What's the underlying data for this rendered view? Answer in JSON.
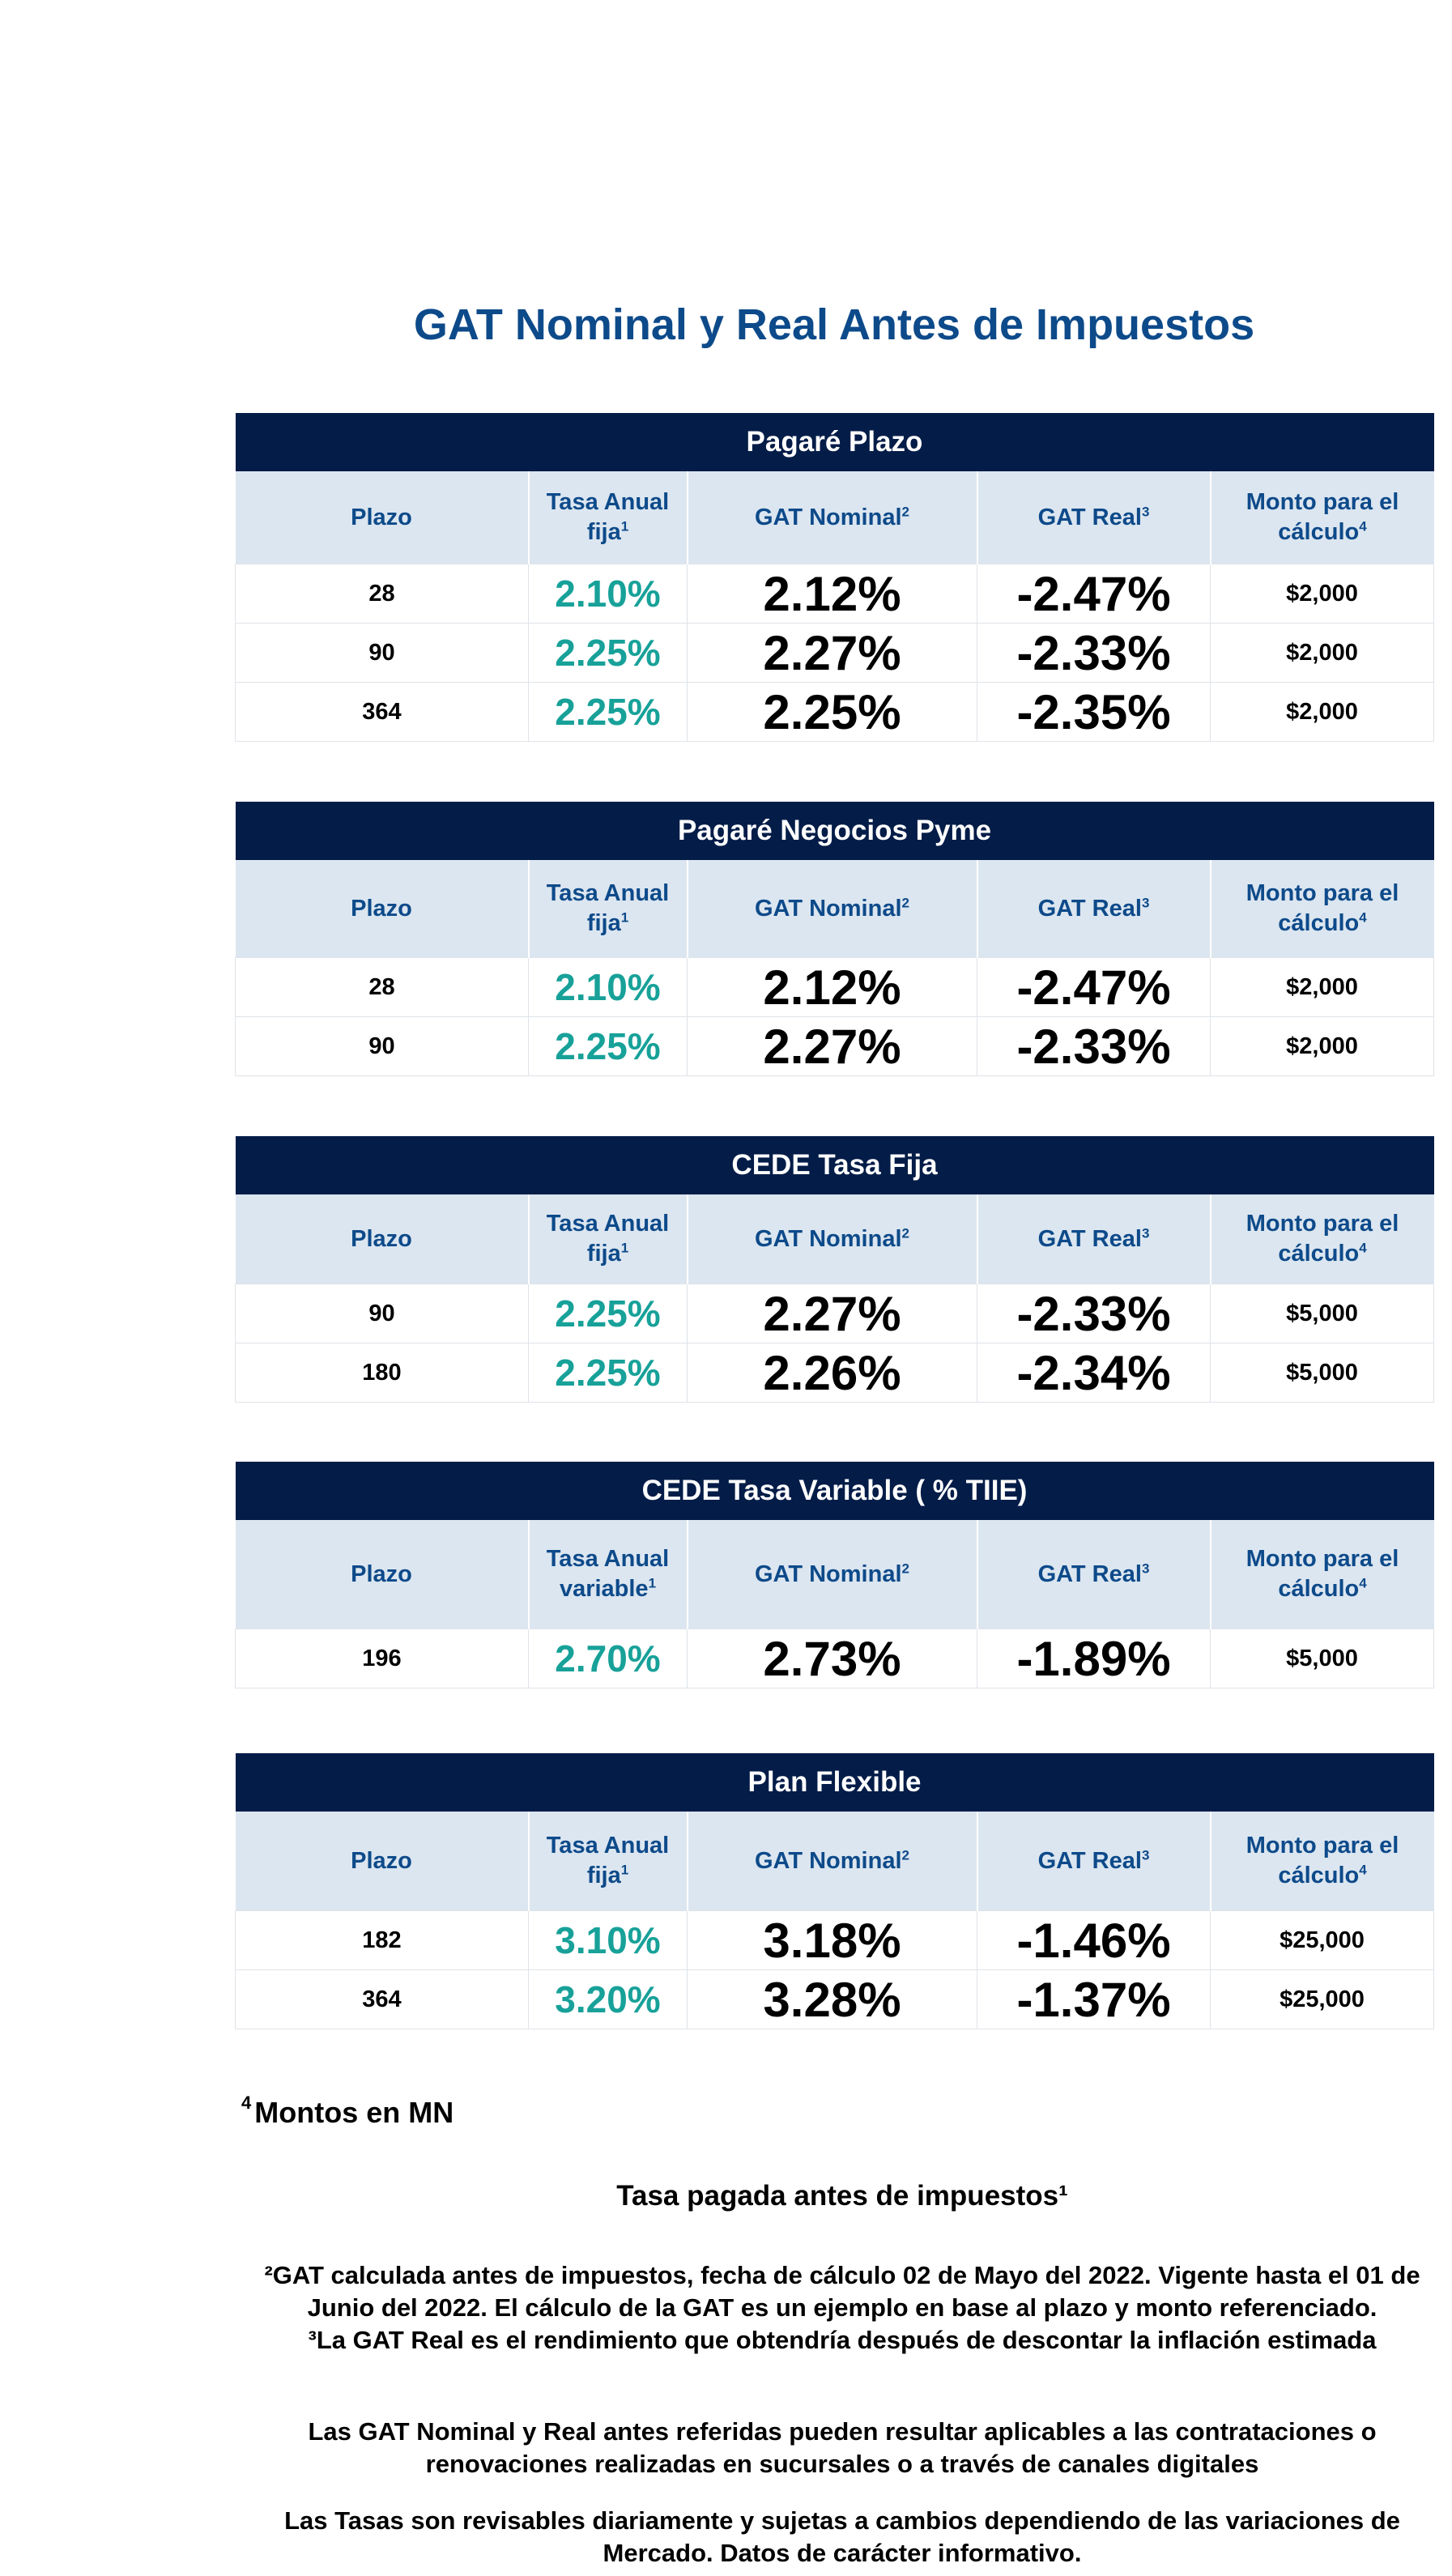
{
  "title": "GAT Nominal y Real Antes de Impuestos",
  "colors": {
    "title": "#0d4a8a",
    "table_header_bg": "#031c48",
    "column_header_bg": "#dce6f0",
    "rate_accent": "#17a199"
  },
  "tables": [
    {
      "title": "Pagaré Plazo",
      "headers": {
        "plazo": "Plazo",
        "tasa": "Tasa Anual fija",
        "tasa_sup": "1",
        "gat_nominal": "GAT Nominal",
        "gat_nominal_sup": "2",
        "gat_real": "GAT Real",
        "gat_real_sup": "3",
        "monto": "Monto para el cálculo",
        "monto_sup": "4"
      },
      "rows": [
        {
          "plazo": "28",
          "tasa": "2.10%",
          "gat_nominal": "2.12%",
          "gat_real": "-2.47%",
          "monto": "$2,000"
        },
        {
          "plazo": "90",
          "tasa": "2.25%",
          "gat_nominal": "2.27%",
          "gat_real": "-2.33%",
          "monto": "$2,000"
        },
        {
          "plazo": "364",
          "tasa": "2.25%",
          "gat_nominal": "2.25%",
          "gat_real": "-2.35%",
          "monto": "$2,000"
        }
      ]
    },
    {
      "title": "Pagaré Negocios Pyme",
      "headers": {
        "plazo": "Plazo",
        "tasa": "Tasa Anual fija",
        "tasa_sup": "1",
        "gat_nominal": "GAT Nominal",
        "gat_nominal_sup": "2",
        "gat_real": "GAT Real",
        "gat_real_sup": "3",
        "monto": "Monto para el cálculo",
        "monto_sup": "4"
      },
      "rows": [
        {
          "plazo": "28",
          "tasa": "2.10%",
          "gat_nominal": "2.12%",
          "gat_real": "-2.47%",
          "monto": "$2,000"
        },
        {
          "plazo": "90",
          "tasa": "2.25%",
          "gat_nominal": "2.27%",
          "gat_real": "-2.33%",
          "monto": "$2,000"
        }
      ]
    },
    {
      "title": "CEDE Tasa Fija",
      "headers": {
        "plazo": "Plazo",
        "tasa": "Tasa Anual fija",
        "tasa_sup": "1",
        "gat_nominal": "GAT Nominal",
        "gat_nominal_sup": "2",
        "gat_real": "GAT Real",
        "gat_real_sup": "3",
        "monto": "Monto para el cálculo",
        "monto_sup": "4"
      },
      "rows": [
        {
          "plazo": "90",
          "tasa": "2.25%",
          "gat_nominal": "2.27%",
          "gat_real": "-2.33%",
          "monto": "$5,000"
        },
        {
          "plazo": "180",
          "tasa": "2.25%",
          "gat_nominal": "2.26%",
          "gat_real": "-2.34%",
          "monto": "$5,000"
        }
      ]
    },
    {
      "title": "CEDE Tasa Variable ( % TIIE)",
      "headers": {
        "plazo": "Plazo",
        "tasa": "Tasa Anual variable",
        "tasa_sup": "1",
        "gat_nominal": "GAT Nominal",
        "gat_nominal_sup": "2",
        "gat_real": "GAT Real",
        "gat_real_sup": "3",
        "monto": "Monto para el cálculo",
        "monto_sup": "4"
      },
      "rows": [
        {
          "plazo": "196",
          "tasa": "2.70%",
          "gat_nominal": "2.73%",
          "gat_real": "-1.89%",
          "monto": "$5,000"
        }
      ]
    },
    {
      "title": "Plan Flexible",
      "headers": {
        "plazo": "Plazo",
        "tasa": "Tasa Anual fija",
        "tasa_sup": "1",
        "gat_nominal": "GAT Nominal",
        "gat_nominal_sup": "2",
        "gat_real": "GAT Real",
        "gat_real_sup": "3",
        "monto": "Monto para el cálculo",
        "monto_sup": "4"
      },
      "rows": [
        {
          "plazo": "182",
          "tasa": "3.10%",
          "gat_nominal": "3.18%",
          "gat_real": "-1.46%",
          "monto": "$25,000"
        },
        {
          "plazo": "364",
          "tasa": "3.20%",
          "gat_nominal": "3.28%",
          "gat_real": "-1.37%",
          "monto": "$25,000"
        }
      ]
    }
  ],
  "notes": {
    "montos_sup": "4",
    "montos": "Montos en MN",
    "tasa_pagada": "Tasa pagada antes de impuestos¹",
    "gat_calculada": "²GAT calculada antes de impuestos, fecha de cálculo 02 de Mayo del 2022. Vigente hasta el 01 de Junio del 2022. El cálculo de la GAT es un ejemplo en base al plazo y monto referenciado.",
    "gat_real": "³La GAT Real es el rendimiento que obtendría después de descontar la inflación estimada",
    "contrataciones": "Las GAT Nominal y Real antes referidas pueden resultar aplicables a las contrataciones o renovaciones realizadas en sucursales o a través de canales digitales",
    "revisables": "Las Tasas son revisables diariamente y sujetas a cambios dependiendo de las variaciones de Mercado. Datos de carácter informativo."
  }
}
